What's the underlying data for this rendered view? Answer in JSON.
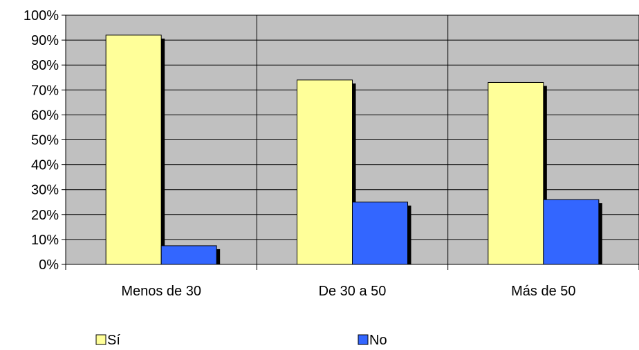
{
  "chart_data": {
    "type": "bar",
    "categories": [
      "Menos de 30",
      "De 30 a 50",
      "Más de 50"
    ],
    "series": [
      {
        "name": "Sí",
        "values": [
          92,
          74,
          73
        ],
        "color": "#ffff99"
      },
      {
        "name": "No",
        "values": [
          7.5,
          25,
          26
        ],
        "color": "#3366ff"
      }
    ],
    "yticks": [
      "0%",
      "10%",
      "20%",
      "30%",
      "40%",
      "50%",
      "60%",
      "70%",
      "80%",
      "90%",
      "100%"
    ],
    "ylim": [
      0,
      100
    ],
    "grid": true,
    "plot_background": "#c0c0c0",
    "legend_position": "bottom",
    "title": "",
    "xlabel": "",
    "ylabel": ""
  }
}
